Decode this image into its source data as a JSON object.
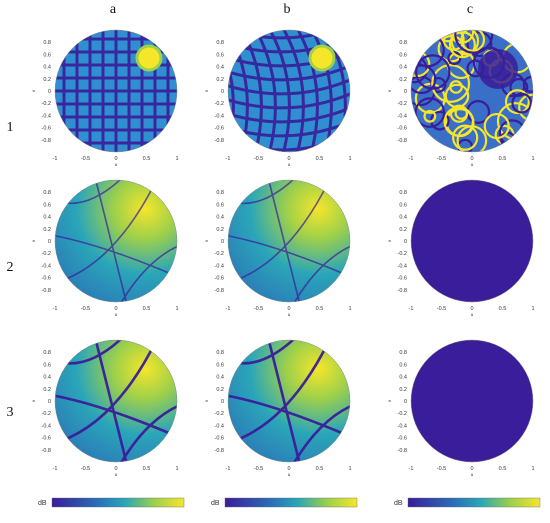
{
  "columns": [
    "a",
    "b",
    "c"
  ],
  "rows": [
    "1",
    "2",
    "3"
  ],
  "x_ticks": [
    "-1",
    "-0.5",
    "0",
    "0.5",
    "1"
  ],
  "y_ticks": [
    "0.8",
    "0.6",
    "0.4",
    "0.2",
    "0",
    "-0.2",
    "-0.4",
    "-0.6",
    "-0.8"
  ],
  "axis_labels": {
    "x": "u",
    "y": "v"
  },
  "colorbar_unit": "dB",
  "colors": {
    "dark": "#3a1d9a",
    "mid": "#2aa6b8",
    "high": "#9fd04a",
    "peak": "#f5e62a"
  },
  "panels": [
    {
      "row": 1,
      "col": "a",
      "pattern": "lattice-with-peak"
    },
    {
      "row": 1,
      "col": "b",
      "pattern": "curved-lattice-with-peak"
    },
    {
      "row": 1,
      "col": "c",
      "pattern": "noisy-rings"
    },
    {
      "row": 2,
      "col": "a",
      "pattern": "smooth-beam"
    },
    {
      "row": 2,
      "col": "b",
      "pattern": "smooth-beam"
    },
    {
      "row": 2,
      "col": "c",
      "pattern": "uniform-dark"
    },
    {
      "row": 3,
      "col": "a",
      "pattern": "beam-with-nulls"
    },
    {
      "row": 3,
      "col": "b",
      "pattern": "beam-with-nulls"
    },
    {
      "row": 3,
      "col": "c",
      "pattern": "uniform-dark"
    }
  ]
}
